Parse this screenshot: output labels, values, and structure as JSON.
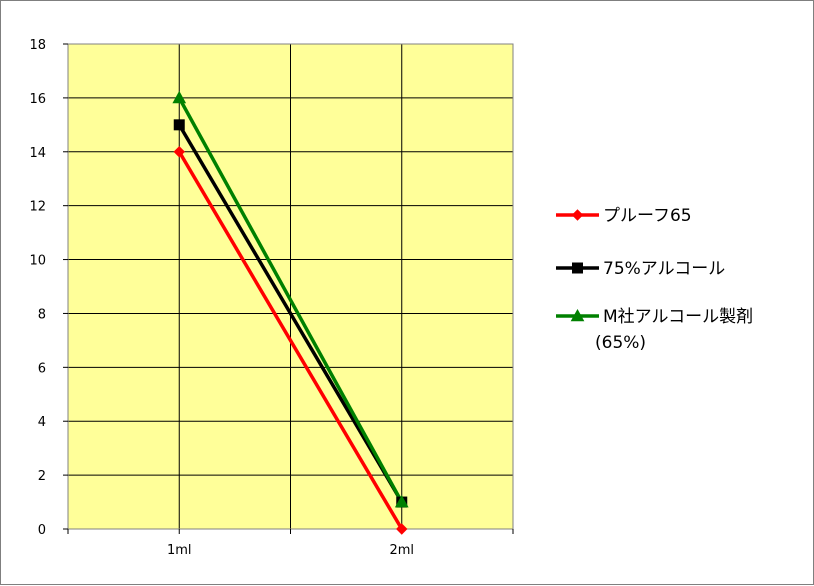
{
  "chart_data": {
    "type": "line",
    "title": "",
    "xlabel": "",
    "ylabel": "",
    "categories": [
      "1ml",
      "2ml"
    ],
    "ylim": [
      0,
      18
    ],
    "yticks": [
      0,
      2,
      4,
      6,
      8,
      10,
      12,
      14,
      16,
      18
    ],
    "grid": true,
    "plot_background": "#ffff99",
    "legend_position": "right",
    "series": [
      {
        "name": "プルーフ65",
        "values": [
          14,
          0
        ],
        "color": "#ff0000",
        "marker": "diamond"
      },
      {
        "name": "75%アルコール",
        "values": [
          15,
          1
        ],
        "color": "#000000",
        "marker": "square"
      },
      {
        "name": "M社アルコール製剤",
        "name_line2": "(65%)",
        "values": [
          16,
          1
        ],
        "color": "#008000",
        "marker": "triangle"
      }
    ]
  }
}
